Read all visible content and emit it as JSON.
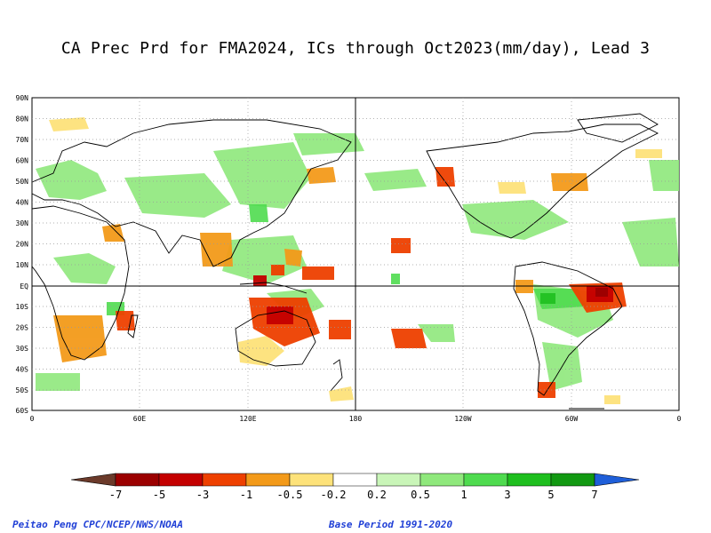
{
  "title": "CA Prec Prd for FMA2024, ICs through Oct2023(mm/day), Lead 3",
  "map": {
    "y_ticks": [
      "90N",
      "80N",
      "70N",
      "60N",
      "50N",
      "40N",
      "30N",
      "20N",
      "10N",
      "EQ",
      "10S",
      "20S",
      "30S",
      "40S",
      "50S",
      "60S"
    ],
    "x_ticks": [
      "0",
      "60E",
      "120E",
      "180",
      "120W",
      "60W",
      "0"
    ],
    "colors": {
      "land_outline": "#000000",
      "grid": "#999999"
    }
  },
  "colorbar": {
    "labels": [
      "-7",
      "-5",
      "-3",
      "-1",
      "-0.5",
      "-0.2",
      "0.2",
      "0.5",
      "1",
      "3",
      "5",
      "7"
    ],
    "colors": [
      "#6b3a2a",
      "#9b0000",
      "#c40000",
      "#ee4000",
      "#f39a1a",
      "#fde27a",
      "#ffffff",
      "#c9f5b8",
      "#8fe87c",
      "#4fdb4f",
      "#1fbf1f",
      "#129912",
      "#1f5fd9"
    ]
  },
  "footer": {
    "author": "Peitao Peng CPC/NCEP/NWS/NOAA",
    "base_period": "Base Period 1991-2020"
  }
}
